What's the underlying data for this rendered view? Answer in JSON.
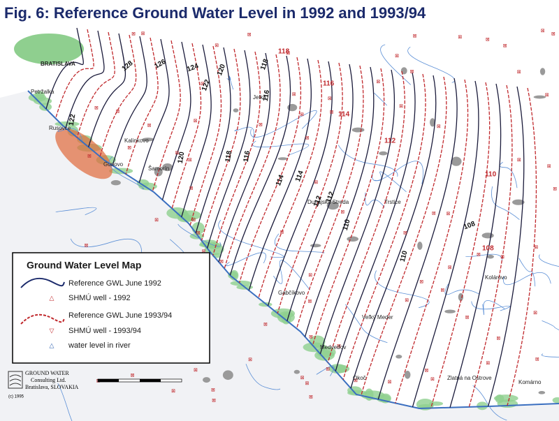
{
  "title": "Fig. 6: Reference Ground Water Level in 1992 and 1993/94",
  "legend": {
    "title": "Ground Water Level Map",
    "items": [
      "Reference GWL June 1992",
      "SHMÚ well - 1992",
      "Reference GWL June 1993/94",
      "SHMÚ well - 1993/94",
      "water level in river"
    ]
  },
  "places": [
    "BRATISLAVA",
    "Petržalka",
    "Rusovce",
    "Kalinkovo",
    "Gunovo",
    "Šamorín",
    "Dunajská Streda",
    "Trstice",
    "Gabčíkovo",
    "Veľký Meder",
    "Medveďov",
    "Okoč",
    "Kolárovo",
    "Zlatná na Ostrove",
    "Komárno",
    "Jelka"
  ],
  "contour_labels": [
    128,
    126,
    124,
    122,
    120,
    118,
    116,
    114,
    112,
    110,
    108,
    118,
    116,
    114,
    112,
    110,
    108,
    122,
    120,
    118,
    116,
    114,
    112,
    110
  ],
  "logo": {
    "name": "GROUND WATER",
    "line2": "Consulting Ltd.",
    "line3": "Bratislava, SLOVAKIA"
  },
  "copyright": "(c) 1995"
}
